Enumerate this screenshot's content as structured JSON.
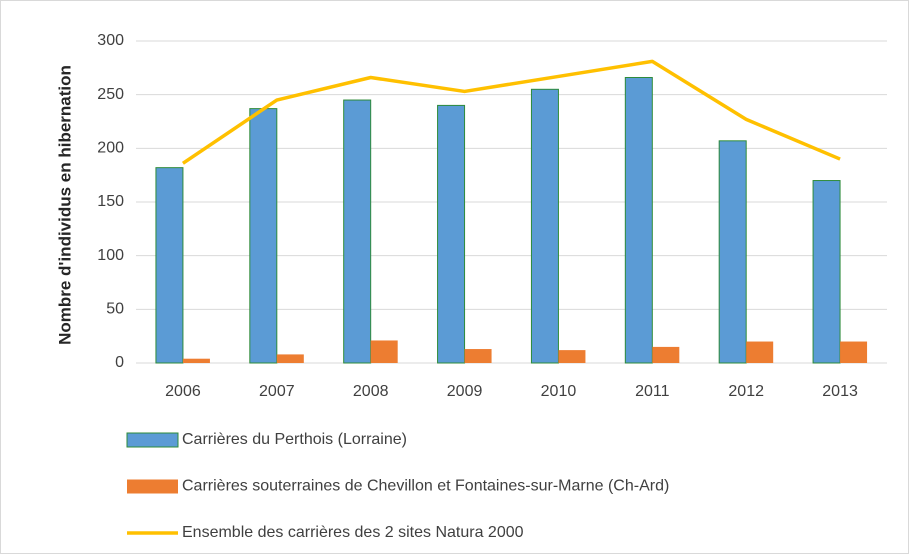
{
  "chart_data": {
    "type": "bar",
    "y_label": "Nombre d'individus en hibernation",
    "categories": [
      "2006",
      "2007",
      "2008",
      "2009",
      "2010",
      "2011",
      "2012",
      "2013"
    ],
    "series": [
      {
        "name": "Carrières du Perthois (Lorraine)",
        "color": "#5b9bd5",
        "type": "bar",
        "values": [
          182,
          237,
          245,
          240,
          255,
          266,
          207,
          170
        ]
      },
      {
        "name": "Carrières souterraines de Chevillon et Fontaines-sur-Marne (Ch-Ard)",
        "color": "#ed7d31",
        "type": "bar",
        "values": [
          4,
          8,
          21,
          13,
          12,
          15,
          20,
          20
        ]
      },
      {
        "name": "Ensemble des carrières des 2 sites Natura 2000",
        "color": "#ffc000",
        "type": "line",
        "values": [
          186,
          245,
          266,
          253,
          267,
          281,
          227,
          190
        ]
      }
    ],
    "ylim": [
      0,
      300
    ],
    "yticks": [
      0,
      50,
      100,
      150,
      200,
      250,
      300
    ],
    "grid": true
  }
}
